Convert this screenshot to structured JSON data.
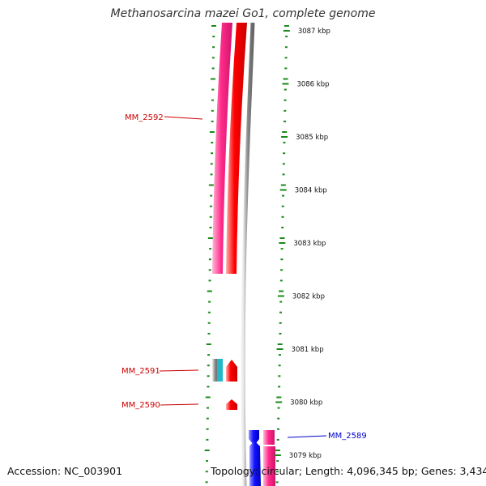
{
  "title": "Methanosarcina mazei Go1, complete genome",
  "accession": "Accession: NC_003901",
  "topology": "Topology: circular; Length: 4,096,345 bp; Genes: 3,434",
  "kbp_labels": [
    {
      "kbp": 3087,
      "text": "3087 kbp"
    },
    {
      "kbp": 3086,
      "text": "3086 kbp"
    },
    {
      "kbp": 3085,
      "text": "3085 kbp"
    },
    {
      "kbp": 3084,
      "text": "3084 kbp"
    },
    {
      "kbp": 3083,
      "text": "3083 kbp"
    },
    {
      "kbp": 3082,
      "text": "3082 kbp"
    },
    {
      "kbp": 3081,
      "text": "3081 kbp"
    },
    {
      "kbp": 3080,
      "text": "3080 kbp"
    },
    {
      "kbp": 3079,
      "text": "3079 kbp"
    }
  ],
  "genes": [
    {
      "name": "MM_2592",
      "color": "#cc0000"
    },
    {
      "name": "MM_2591",
      "color": "#cc0000"
    },
    {
      "name": "MM_2590",
      "color": "#cc0000"
    },
    {
      "name": "MM_2589",
      "color": "#0000cc"
    }
  ],
  "colors": {
    "tick": "#1a8a1a",
    "magenta": "#ff2a8a",
    "red": "#ff0000",
    "blue": "#1212ff",
    "cyan": "#22b8c8",
    "grey": "#888888"
  }
}
